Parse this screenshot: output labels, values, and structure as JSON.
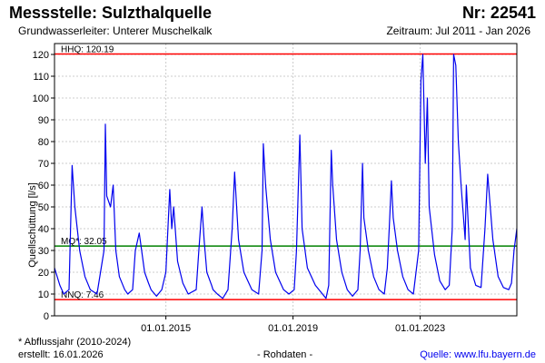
{
  "header": {
    "station": "Messstelle: Sulzthalquelle",
    "number": "Nr: 22541",
    "aquifer": "Grundwasserleiter:   Unterer Muschelkalk",
    "period": "Zeitraum: Jul 2011 - Jan 2026"
  },
  "footer": {
    "note": "* Abflussjahr (2010-2024)",
    "created": "erstellt:  16.01.2026",
    "rawdata": "- Rohdaten -",
    "source": "Quelle: www.lfu.bayern.de"
  },
  "colors": {
    "series": "#0000ee",
    "hhq": "#ff0000",
    "mq": "#008000",
    "nnq": "#ff0000",
    "grid": "#cccccc"
  },
  "chart_data": {
    "type": "line",
    "title": "",
    "ylabel": "Quellschüttung [l/s]",
    "xlabel": "",
    "ylim": [
      0,
      125
    ],
    "yticks": [
      0,
      10,
      20,
      30,
      40,
      50,
      60,
      70,
      80,
      90,
      100,
      110,
      120
    ],
    "xlim": [
      "2011-07-01",
      "2026-01-16"
    ],
    "xticks": [
      {
        "date": "2015-01-01",
        "label": "01.01.2015"
      },
      {
        "date": "2019-01-01",
        "label": "01.01.2019"
      },
      {
        "date": "2023-01-01",
        "label": "01.01.2023"
      }
    ],
    "grid": true,
    "reference_lines": [
      {
        "name": "HHQ",
        "label": "HHQ: 120.19",
        "value": 120.19
      },
      {
        "name": "MQ",
        "label": "MQ*: 32.05",
        "value": 32.05
      },
      {
        "name": "NNQ",
        "label": "NNQ: 7.46",
        "value": 7.46
      }
    ],
    "series": [
      {
        "x": [
          "2011-07-01",
          "2011-09-01",
          "2011-10-15",
          "2011-12-15",
          "2012-01-20",
          "2012-02-20",
          "2012-04-15",
          "2012-06-15",
          "2012-08-15",
          "2012-11-01",
          "2013-01-20",
          "2013-02-05",
          "2013-02-20",
          "2013-04-05",
          "2013-05-05",
          "2013-06-05",
          "2013-07-15",
          "2013-09-15",
          "2013-10-20",
          "2013-12-15",
          "2014-01-15",
          "2014-03-01",
          "2014-05-01",
          "2014-06-15",
          "2014-07-15",
          "2014-09-15",
          "2014-11-15",
          "2015-01-01",
          "2015-02-15",
          "2015-03-10",
          "2015-04-01",
          "2015-05-15",
          "2015-07-15",
          "2015-09-15",
          "2015-12-15",
          "2016-01-15",
          "2016-02-20",
          "2016-03-15",
          "2016-04-15",
          "2016-06-10",
          "2016-06-25",
          "2016-08-15",
          "2016-10-15",
          "2016-12-15",
          "2017-02-01",
          "2017-03-01",
          "2017-04-15",
          "2017-06-15",
          "2017-09-15",
          "2017-12-01",
          "2018-01-10",
          "2018-01-25",
          "2018-02-20",
          "2018-04-15",
          "2018-06-15",
          "2018-09-15",
          "2018-11-15",
          "2019-01-15",
          "2019-02-10",
          "2019-03-20",
          "2019-04-15",
          "2019-06-15",
          "2019-09-15",
          "2019-11-15",
          "2020-01-15",
          "2020-02-15",
          "2020-03-15",
          "2020-04-01",
          "2020-05-15",
          "2020-07-15",
          "2020-09-15",
          "2020-11-15",
          "2021-01-15",
          "2021-02-10",
          "2021-03-10",
          "2021-03-25",
          "2021-05-15",
          "2021-07-15",
          "2021-09-15",
          "2021-11-15",
          "2021-12-20",
          "2022-01-10",
          "2022-02-05",
          "2022-02-25",
          "2022-04-15",
          "2022-06-15",
          "2022-08-15",
          "2022-10-15",
          "2022-12-15",
          "2023-01-10",
          "2023-02-01",
          "2023-03-01",
          "2023-03-25",
          "2023-04-15",
          "2023-06-15",
          "2023-08-15",
          "2023-10-15",
          "2023-12-01",
          "2024-01-05",
          "2024-01-20",
          "2024-02-15",
          "2024-03-15",
          "2024-04-15",
          "2024-06-01",
          "2024-06-15",
          "2024-08-01",
          "2024-10-01",
          "2024-12-01",
          "2025-01-15",
          "2025-02-15",
          "2025-04-15",
          "2025-06-15",
          "2025-08-15",
          "2025-10-15",
          "2025-11-15",
          "2025-12-15",
          "2026-01-16"
        ],
        "y": [
          22,
          14,
          10,
          12,
          69,
          50,
          30,
          18,
          12,
          10,
          30,
          88,
          55,
          50,
          60,
          30,
          18,
          12,
          10,
          12,
          30,
          38,
          20,
          15,
          12,
          9,
          12,
          20,
          58,
          40,
          50,
          25,
          15,
          10,
          12,
          30,
          50,
          35,
          20,
          14,
          12,
          10,
          8,
          12,
          40,
          66,
          35,
          20,
          12,
          10,
          30,
          79,
          60,
          35,
          20,
          12,
          10,
          12,
          30,
          83,
          40,
          22,
          14,
          11,
          8,
          14,
          76,
          60,
          35,
          20,
          12,
          9,
          12,
          30,
          70,
          45,
          30,
          18,
          12,
          10,
          22,
          40,
          62,
          45,
          30,
          18,
          12,
          10,
          30,
          108,
          120,
          70,
          100,
          50,
          28,
          16,
          12,
          14,
          40,
          120,
          115,
          80,
          60,
          35,
          60,
          22,
          14,
          13,
          40,
          65,
          35,
          18,
          13,
          12,
          15,
          30,
          40
        ]
      }
    ]
  }
}
